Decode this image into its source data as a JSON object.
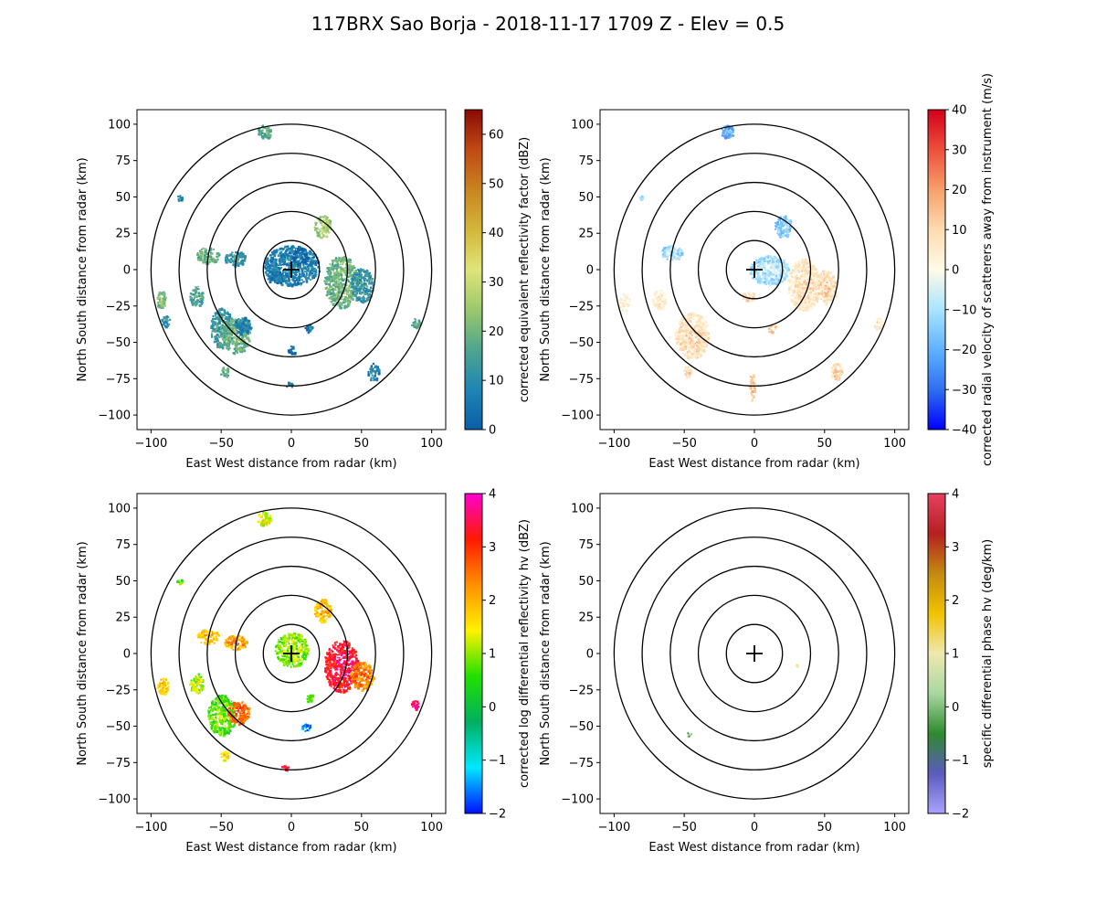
{
  "figure": {
    "title": "117BRX Sao Borja - 2018-11-17 1709 Z -  Elev = 0.5"
  },
  "chart_data": [
    {
      "type": "heatmap",
      "id": "reflectivity",
      "xlabel": "East West distance from radar (km)",
      "ylabel": "North South distance from radar (km)",
      "xlim": [
        -110,
        110
      ],
      "ylim": [
        -110,
        110
      ],
      "xticks": [
        -100,
        -50,
        0,
        50,
        100
      ],
      "yticks": [
        -100,
        -75,
        -50,
        -25,
        0,
        25,
        50,
        75,
        100
      ],
      "range_rings_km": [
        20,
        40,
        60,
        80,
        100
      ],
      "colorbar": {
        "label": "corrected equivalent reflectivity factor (dBZ)",
        "min": 0,
        "max": 65,
        "ticks": [
          0,
          10,
          20,
          30,
          40,
          50,
          60
        ],
        "colors": [
          "#0a5ea8",
          "#1f85b4",
          "#4fa58e",
          "#9bc86c",
          "#dfe57a",
          "#d3b63a",
          "#c8841f",
          "#c04a14",
          "#8b0a06"
        ]
      },
      "echoes": [
        {
          "x": 0,
          "y": 3,
          "rx": 20,
          "ry": 14,
          "value": 10
        },
        {
          "x": 5,
          "y": 10,
          "rx": 6,
          "ry": 6,
          "value": 4
        },
        {
          "x": 35,
          "y": -8,
          "rx": 12,
          "ry": 18,
          "value": 22
        },
        {
          "x": 50,
          "y": -10,
          "rx": 8,
          "ry": 12,
          "value": 14
        },
        {
          "x": 22,
          "y": 30,
          "rx": 6,
          "ry": 8,
          "value": 28
        },
        {
          "x": -20,
          "y": 95,
          "rx": 5,
          "ry": 5,
          "value": 20
        },
        {
          "x": -60,
          "y": 10,
          "rx": 8,
          "ry": 6,
          "value": 22
        },
        {
          "x": -40,
          "y": 8,
          "rx": 8,
          "ry": 5,
          "value": 14
        },
        {
          "x": -68,
          "y": -18,
          "rx": 5,
          "ry": 7,
          "value": 18
        },
        {
          "x": -93,
          "y": -20,
          "rx": 4,
          "ry": 6,
          "value": 24
        },
        {
          "x": -90,
          "y": -35,
          "rx": 3,
          "ry": 4,
          "value": 14
        },
        {
          "x": -50,
          "y": -40,
          "rx": 8,
          "ry": 14,
          "value": 16
        },
        {
          "x": -40,
          "y": -45,
          "rx": 10,
          "ry": 12,
          "value": 22
        },
        {
          "x": -35,
          "y": -38,
          "rx": 6,
          "ry": 6,
          "value": 10
        },
        {
          "x": -10,
          "y": -5,
          "rx": 8,
          "ry": 4,
          "value": 8
        },
        {
          "x": 12,
          "y": -40,
          "rx": 3,
          "ry": 3,
          "value": 8
        },
        {
          "x": 0,
          "y": -55,
          "rx": 3,
          "ry": 3,
          "value": 6
        },
        {
          "x": 58,
          "y": -70,
          "rx": 4,
          "ry": 6,
          "value": 10
        },
        {
          "x": -48,
          "y": -70,
          "rx": 3,
          "ry": 4,
          "value": 20
        },
        {
          "x": 88,
          "y": -37,
          "rx": 3,
          "ry": 4,
          "value": 20
        },
        {
          "x": -80,
          "y": 50,
          "rx": 2,
          "ry": 2,
          "value": 12
        },
        {
          "x": -2,
          "y": -79,
          "rx": 3,
          "ry": 2,
          "value": 10
        }
      ]
    },
    {
      "type": "heatmap",
      "id": "velocity",
      "xlabel": "East West distance from radar (km)",
      "ylabel": "North South distance from radar (km)",
      "xlim": [
        -110,
        110
      ],
      "ylim": [
        -110,
        110
      ],
      "xticks": [
        -100,
        -50,
        0,
        50,
        100
      ],
      "yticks": [
        -100,
        -75,
        -50,
        -25,
        0,
        25,
        50,
        75,
        100
      ],
      "range_rings_km": [
        20,
        40,
        60,
        80,
        100
      ],
      "colorbar": {
        "label": "corrected radial velocity of scatterers away from instrument (m/s)",
        "min": -40,
        "max": 40,
        "ticks": [
          -40,
          -30,
          -20,
          -10,
          0,
          10,
          20,
          30,
          40
        ],
        "colors": [
          "#0000ff",
          "#2f6ff0",
          "#5fb2ff",
          "#a9e4ff",
          "#fffbe6",
          "#fddbb0",
          "#f7a06a",
          "#ed4f3c",
          "#d20019"
        ]
      },
      "echoes": [
        {
          "x": 20,
          "y": 30,
          "rx": 6,
          "ry": 8,
          "value": -12
        },
        {
          "x": -20,
          "y": 95,
          "rx": 5,
          "ry": 5,
          "value": -18
        },
        {
          "x": -60,
          "y": 12,
          "rx": 8,
          "ry": 5,
          "value": -8
        },
        {
          "x": 10,
          "y": 0,
          "rx": 14,
          "ry": 10,
          "value": -7
        },
        {
          "x": 35,
          "y": -10,
          "rx": 12,
          "ry": 18,
          "value": 10
        },
        {
          "x": 50,
          "y": -12,
          "rx": 8,
          "ry": 12,
          "value": 12
        },
        {
          "x": -45,
          "y": -45,
          "rx": 12,
          "ry": 16,
          "value": 11
        },
        {
          "x": -68,
          "y": -20,
          "rx": 5,
          "ry": 7,
          "value": 8
        },
        {
          "x": -93,
          "y": -22,
          "rx": 4,
          "ry": 6,
          "value": 6
        },
        {
          "x": 58,
          "y": -70,
          "rx": 4,
          "ry": 6,
          "value": 14
        },
        {
          "x": -2,
          "y": -80,
          "rx": 2,
          "ry": 10,
          "value": 16
        },
        {
          "x": 88,
          "y": -37,
          "rx": 3,
          "ry": 4,
          "value": 10
        },
        {
          "x": -80,
          "y": 50,
          "rx": 2,
          "ry": 2,
          "value": -10
        },
        {
          "x": 12,
          "y": -40,
          "rx": 3,
          "ry": 3,
          "value": 16
        },
        {
          "x": -48,
          "y": -70,
          "rx": 3,
          "ry": 4,
          "value": 12
        },
        {
          "x": -5,
          "y": -18,
          "rx": 5,
          "ry": 3,
          "value": 14
        }
      ]
    },
    {
      "type": "heatmap",
      "id": "zdr",
      "xlabel": "East West distance from radar (km)",
      "ylabel": "North South distance from radar (km)",
      "xlim": [
        -110,
        110
      ],
      "ylim": [
        -110,
        110
      ],
      "xticks": [
        -100,
        -50,
        0,
        50,
        100
      ],
      "yticks": [
        -100,
        -75,
        -50,
        -25,
        0,
        25,
        50,
        75,
        100
      ],
      "range_rings_km": [
        20,
        40,
        60,
        80,
        100
      ],
      "colorbar": {
        "label": "corrected log differential reflectivity hv (dBZ)",
        "min": -2,
        "max": 4,
        "ticks": [
          -2,
          -1,
          0,
          1,
          2,
          3,
          4
        ],
        "colors": [
          "#0010ff",
          "#00e8ff",
          "#00b060",
          "#22e000",
          "#fff200",
          "#ff9000",
          "#ff1a00",
          "#ff00d0"
        ]
      },
      "echoes": [
        {
          "x": 0,
          "y": 3,
          "rx": 12,
          "ry": 12,
          "value": 1.2
        },
        {
          "x": 35,
          "y": -8,
          "rx": 12,
          "ry": 18,
          "value": 3.6
        },
        {
          "x": 50,
          "y": -15,
          "rx": 8,
          "ry": 10,
          "value": 2.6
        },
        {
          "x": 22,
          "y": 30,
          "rx": 6,
          "ry": 8,
          "value": 2.2
        },
        {
          "x": -20,
          "y": 93,
          "rx": 5,
          "ry": 5,
          "value": 1.6
        },
        {
          "x": -60,
          "y": 12,
          "rx": 8,
          "ry": 5,
          "value": 2.0
        },
        {
          "x": -40,
          "y": 8,
          "rx": 8,
          "ry": 5,
          "value": 2.4
        },
        {
          "x": -68,
          "y": -20,
          "rx": 5,
          "ry": 7,
          "value": 1.4
        },
        {
          "x": -92,
          "y": -22,
          "rx": 4,
          "ry": 6,
          "value": 2.0
        },
        {
          "x": -50,
          "y": -42,
          "rx": 10,
          "ry": 14,
          "value": 1.0
        },
        {
          "x": -38,
          "y": -40,
          "rx": 8,
          "ry": 8,
          "value": 2.8
        },
        {
          "x": -48,
          "y": -70,
          "rx": 3,
          "ry": 4,
          "value": 1.8
        },
        {
          "x": 88,
          "y": -35,
          "rx": 3,
          "ry": 3,
          "value": 3.8
        },
        {
          "x": 10,
          "y": -50,
          "rx": 3,
          "ry": 3,
          "value": -1.2
        },
        {
          "x": -5,
          "y": -78,
          "rx": 3,
          "ry": 2,
          "value": 3.6
        },
        {
          "x": -80,
          "y": 50,
          "rx": 2,
          "ry": 2,
          "value": 1.0
        },
        {
          "x": 12,
          "y": -30,
          "rx": 3,
          "ry": 3,
          "value": 0.8
        }
      ]
    },
    {
      "type": "heatmap",
      "id": "kdp",
      "xlabel": "East West distance from radar (km)",
      "ylabel": "North South distance from radar (km)",
      "xlim": [
        -110,
        110
      ],
      "ylim": [
        -110,
        110
      ],
      "xticks": [
        -100,
        -50,
        0,
        50,
        100
      ],
      "yticks": [
        -100,
        -75,
        -50,
        -25,
        0,
        25,
        50,
        75,
        100
      ],
      "range_rings_km": [
        20,
        40,
        60,
        80,
        100
      ],
      "colorbar": {
        "label": "specific differential phase hv (deg/km)",
        "min": -2,
        "max": 4,
        "ticks": [
          -2,
          -1,
          0,
          1,
          2,
          3,
          4
        ],
        "colors": [
          "#a9a3ff",
          "#5b5bbd",
          "#2e8a2e",
          "#a8d8a0",
          "#efe8b0",
          "#f2c200",
          "#c38a10",
          "#b52020",
          "#e84060"
        ]
      },
      "echoes": [
        {
          "x": -47,
          "y": -55,
          "rx": 1.5,
          "ry": 1.5,
          "value": 0.2
        },
        {
          "x": 30,
          "y": -8,
          "rx": 1,
          "ry": 1,
          "value": 1.2
        }
      ]
    }
  ]
}
